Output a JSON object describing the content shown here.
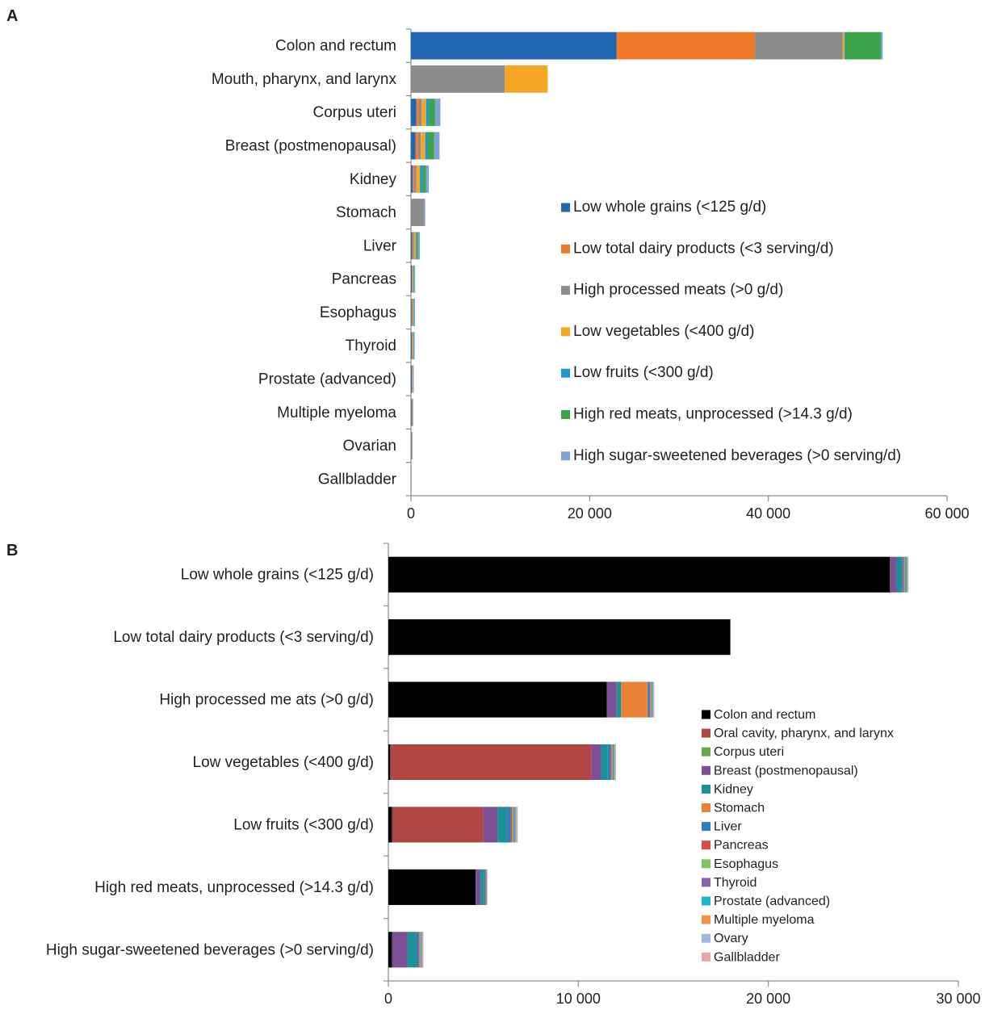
{
  "chart_data": [
    {
      "panel": "A",
      "type": "bar",
      "orientation": "horizontal",
      "stacked": true,
      "categories": [
        "Colon and rectum",
        "Mouth, pharynx, and larynx",
        "Corpus uteri",
        "Breast (postmenopausal)",
        "Kidney",
        "Stomach",
        "Liver",
        "Pancreas",
        "Esophagus",
        "Thyroid",
        "Prostate (advanced)",
        "Multiple myeloma",
        "Ovarian",
        "Gallbladder"
      ],
      "series": [
        {
          "name": "Low whole grains (<125 g/d)",
          "color": "#2166b3",
          "values": [
            23000,
            0,
            600,
            500,
            200,
            0,
            150,
            100,
            80,
            100,
            100,
            80,
            50,
            20
          ]
        },
        {
          "name": "Low total dairy products (<3 serving/d)",
          "color": "#f07b2c",
          "values": [
            15500,
            0,
            300,
            300,
            200,
            0,
            100,
            50,
            50,
            50,
            50,
            50,
            30,
            10
          ]
        },
        {
          "name": "High processed meats (>0 g/d)",
          "color": "#8c8c8c",
          "values": [
            9800,
            10500,
            300,
            300,
            200,
            1500,
            100,
            100,
            100,
            80,
            80,
            50,
            30,
            10
          ]
        },
        {
          "name": "Low vegetables (<400 g/d)",
          "color": "#f5a623",
          "values": [
            200,
            4800,
            500,
            500,
            400,
            0,
            200,
            60,
            60,
            60,
            20,
            20,
            20,
            5
          ]
        },
        {
          "name": "Low fruits (<300 g/d)",
          "color": "#2196d4",
          "values": [
            100,
            0,
            300,
            300,
            300,
            0,
            100,
            60,
            60,
            50,
            20,
            20,
            20,
            5
          ]
        },
        {
          "name": "High red meats, unprocessed (>14.3 g/d)",
          "color": "#3ba34a",
          "values": [
            4000,
            0,
            700,
            700,
            400,
            0,
            150,
            50,
            50,
            40,
            20,
            20,
            20,
            5
          ]
        },
        {
          "name": "High sugar-sweetened beverages (>0 serving/d)",
          "color": "#7fa3d6",
          "values": [
            200,
            0,
            600,
            600,
            300,
            100,
            200,
            50,
            50,
            50,
            20,
            20,
            20,
            5
          ]
        }
      ],
      "xlim": [
        0,
        60000
      ],
      "xticks": [
        "0",
        "20 000",
        "40 000",
        "60 000"
      ],
      "legend_placement": "inside-right"
    },
    {
      "panel": "B",
      "type": "bar",
      "orientation": "horizontal",
      "stacked": true,
      "categories": [
        "Low whole grains (<125 g/d)",
        "Low total dairy products (<3 serving/d)",
        "High processed me ats (>0 g/d)",
        "Low vegetables (<400 g/d)",
        "Low fruits (<300 g/d)",
        "High red meats, unprocessed (>14.3 g/d)",
        "High sugar-sweetened beverages (>0 serving/d)"
      ],
      "series": [
        {
          "name": "Colon and rectum",
          "color": "#000000",
          "values": [
            26400,
            18000,
            11500,
            100,
            200,
            4600,
            200
          ]
        },
        {
          "name": "Oral cavity, pharynx, and larynx",
          "color": "#b04545",
          "values": [
            0,
            0,
            0,
            10600,
            4800,
            0,
            0
          ]
        },
        {
          "name": "Corpus uteri",
          "color": "#6aa84f",
          "values": [
            0,
            0,
            0,
            0,
            0,
            0,
            0
          ]
        },
        {
          "name": "Breast (postmenopausal)",
          "color": "#7a4f93",
          "values": [
            350,
            0,
            500,
            500,
            750,
            250,
            800
          ]
        },
        {
          "name": "Kidney",
          "color": "#1a9097",
          "values": [
            250,
            0,
            250,
            350,
            500,
            200,
            450
          ]
        },
        {
          "name": "Stomach",
          "color": "#ec8238",
          "values": [
            0,
            0,
            1400,
            0,
            0,
            0,
            0
          ]
        },
        {
          "name": "Liver",
          "color": "#2d7fb8",
          "values": [
            100,
            0,
            100,
            150,
            200,
            50,
            150
          ]
        },
        {
          "name": "Pancreas",
          "color": "#dc4a4a",
          "values": [
            50,
            0,
            50,
            50,
            80,
            20,
            50
          ]
        },
        {
          "name": "Esophagus",
          "color": "#84c467",
          "values": [
            50,
            0,
            40,
            50,
            60,
            20,
            40
          ]
        },
        {
          "name": "Thyroid",
          "color": "#8a62a8",
          "values": [
            40,
            0,
            40,
            50,
            50,
            20,
            40
          ]
        },
        {
          "name": "Prostate (advanced)",
          "color": "#20b5c8",
          "values": [
            60,
            0,
            40,
            50,
            60,
            20,
            40
          ]
        },
        {
          "name": "Multiple myeloma",
          "color": "#f0924a",
          "values": [
            30,
            0,
            30,
            30,
            40,
            15,
            30
          ]
        },
        {
          "name": "Ovary",
          "color": "#9fb8db",
          "values": [
            30,
            0,
            30,
            30,
            40,
            15,
            30
          ]
        },
        {
          "name": "Gallbladder",
          "color": "#e8a7a7",
          "values": [
            20,
            0,
            20,
            20,
            30,
            10,
            20
          ]
        }
      ],
      "xlim": [
        0,
        30000
      ],
      "xticks": [
        "0",
        "10 000",
        "20 000",
        "30 000"
      ],
      "legend_placement": "inside-right"
    }
  ]
}
